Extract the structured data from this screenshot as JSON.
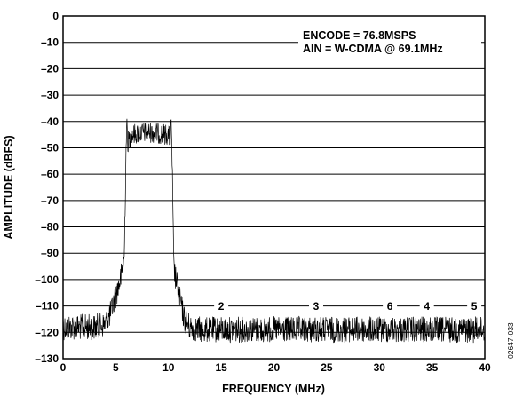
{
  "chart_data": {
    "type": "line",
    "title": "",
    "annotations": [
      "ENCODE = 76.8MSPS",
      "AIN = W-CDMA @ 69.1MHz"
    ],
    "xlabel": "FREQUENCY (MHz)",
    "ylabel": "AMPLITUDE (dBFS)",
    "xlim": [
      0,
      40
    ],
    "ylim": [
      -130,
      0
    ],
    "x_ticks": [
      "0",
      "5",
      "10",
      "15",
      "20",
      "25",
      "30",
      "35",
      "40"
    ],
    "y_ticks": [
      "0",
      "–10",
      "–20",
      "–30",
      "–40",
      "–50",
      "–60",
      "–70",
      "–80",
      "–90",
      "–100",
      "–110",
      "–120",
      "–130"
    ],
    "grid": "horizontal",
    "series": [
      {
        "color": "#000000",
        "x": [
          0,
          3,
          4,
          4.5,
          5,
          5.5,
          5.8,
          6,
          6.5,
          8,
          10,
          10.3,
          10.5,
          11,
          11.5,
          12,
          13,
          20,
          30,
          40
        ],
        "y": [
          -119,
          -119,
          -118,
          -114,
          -107,
          -100,
          -93,
          -45,
          -41,
          -40,
          -41,
          -45,
          -97,
          -107,
          -116,
          -119,
          -120,
          -120,
          -120,
          -120
        ]
      }
    ],
    "harmonic_markers": [
      {
        "label": "2",
        "x": 15
      },
      {
        "label": "3",
        "x": 24
      },
      {
        "label": "6",
        "x": 31
      },
      {
        "label": "4",
        "x": 34.5
      },
      {
        "label": "5",
        "x": 39
      }
    ],
    "harmonic_marker_level": -110
  },
  "figure_id": "02647-033"
}
